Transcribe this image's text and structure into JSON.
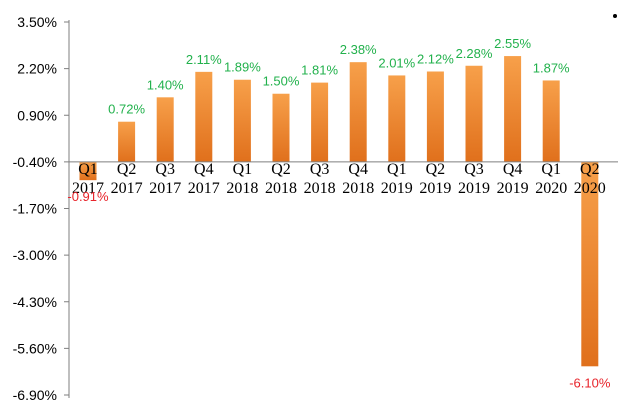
{
  "chart_data": {
    "type": "bar",
    "categories": [
      [
        "Q1",
        "2017"
      ],
      [
        "Q2",
        "2017"
      ],
      [
        "Q3",
        "2017"
      ],
      [
        "Q4",
        "2017"
      ],
      [
        "Q1",
        "2018"
      ],
      [
        "Q2",
        "2018"
      ],
      [
        "Q3",
        "2018"
      ],
      [
        "Q4",
        "2018"
      ],
      [
        "Q1",
        "2019"
      ],
      [
        "Q2",
        "2019"
      ],
      [
        "Q3",
        "2019"
      ],
      [
        "Q4",
        "2019"
      ],
      [
        "Q1",
        "2020"
      ],
      [
        "Q2",
        "2020"
      ]
    ],
    "values": [
      -0.91,
      0.72,
      1.4,
      2.11,
      1.89,
      1.5,
      1.81,
      2.38,
      2.01,
      2.12,
      2.28,
      2.55,
      1.87,
      -6.1
    ],
    "data_labels": [
      "-0.91%",
      "0.72%",
      "1.40%",
      "2.11%",
      "1.89%",
      "1.50%",
      "1.81%",
      "2.38%",
      "2.01%",
      "2.12%",
      "2.28%",
      "2.55%",
      "1.87%",
      "-6.10%"
    ],
    "yticks": [
      3.5,
      2.2,
      0.9,
      -0.4,
      -1.7,
      -3.0,
      -4.3,
      -5.6,
      -6.9
    ],
    "ytick_labels": [
      "3.50%",
      "2.20%",
      "0.90%",
      "-0.40%",
      "-1.70%",
      "-3.00%",
      "-4.30%",
      "-5.60%",
      "-6.90%"
    ],
    "ylim": [
      -6.9,
      3.5
    ],
    "title": "",
    "xlabel": "",
    "ylabel": "",
    "grid": false,
    "colors": {
      "bar_top": "#f7a04a",
      "bar_bottom": "#e0701c",
      "positive_label": "#22b14c",
      "negative_label": "#e8242b",
      "axis": "#7f7f7f"
    }
  }
}
